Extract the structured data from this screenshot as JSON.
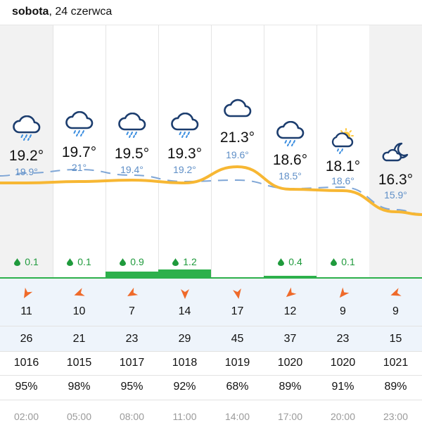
{
  "header": {
    "day": "sobota",
    "date": ", 24 czerwca"
  },
  "colors": {
    "temp_line": "#f7b733",
    "feels_line": "#7fa6d6",
    "rain": "#2db04b",
    "arrow": "#ef6a2a",
    "night_bg": "#f2f2f2"
  },
  "columns": [
    {
      "time": "02:00",
      "icon": "rain-cloud-icon",
      "temp": "19.2°",
      "feels": "19.9°",
      "rain": "0.1",
      "rain_level": 0,
      "wind_dir_deg": 210,
      "wind": "11",
      "gust": "26",
      "pressure": "1016",
      "humidity": "95%",
      "night": true
    },
    {
      "time": "05:00",
      "icon": "rain-cloud-icon",
      "temp": "19.7°",
      "feels": "21°",
      "rain": "0.1",
      "rain_level": 0,
      "wind_dir_deg": 250,
      "wind": "10",
      "gust": "21",
      "pressure": "1015",
      "humidity": "98%",
      "night": false
    },
    {
      "time": "08:00",
      "icon": "rain-cloud-icon",
      "temp": "19.5°",
      "feels": "19.4°",
      "rain": "0.9",
      "rain_level": 0.9,
      "wind_dir_deg": 240,
      "wind": "7",
      "gust": "23",
      "pressure": "1017",
      "humidity": "95%",
      "night": false
    },
    {
      "time": "11:00",
      "icon": "rain-cloud-icon",
      "temp": "19.3°",
      "feels": "19.2°",
      "rain": "1.2",
      "rain_level": 1.2,
      "wind_dir_deg": 180,
      "wind": "14",
      "gust": "29",
      "pressure": "1018",
      "humidity": "92%",
      "night": false
    },
    {
      "time": "14:00",
      "icon": "cloud-icon",
      "temp": "21.3°",
      "feels": "19.6°",
      "rain": "",
      "rain_level": 0,
      "wind_dir_deg": 170,
      "wind": "17",
      "gust": "45",
      "pressure": "1019",
      "humidity": "68%",
      "night": false
    },
    {
      "time": "17:00",
      "icon": "rain-cloud-icon",
      "temp": "18.6°",
      "feels": "18.5°",
      "rain": "0.4",
      "rain_level": 0.4,
      "wind_dir_deg": 230,
      "wind": "12",
      "gust": "37",
      "pressure": "1020",
      "humidity": "89%",
      "night": false
    },
    {
      "time": "20:00",
      "icon": "sun-cloud-rain-icon",
      "temp": "18.1°",
      "feels": "18.6°",
      "rain": "0.1",
      "rain_level": 0,
      "wind_dir_deg": 220,
      "wind": "9",
      "gust": "23",
      "pressure": "1020",
      "humidity": "91%",
      "night": false
    },
    {
      "time": "23:00",
      "icon": "moon-cloud-icon",
      "temp": "16.3°",
      "feels": "15.9°",
      "rain": "",
      "rain_level": 0,
      "wind_dir_deg": 250,
      "wind": "9",
      "gust": "15",
      "pressure": "1021",
      "humidity": "89%",
      "night": true
    }
  ]
}
